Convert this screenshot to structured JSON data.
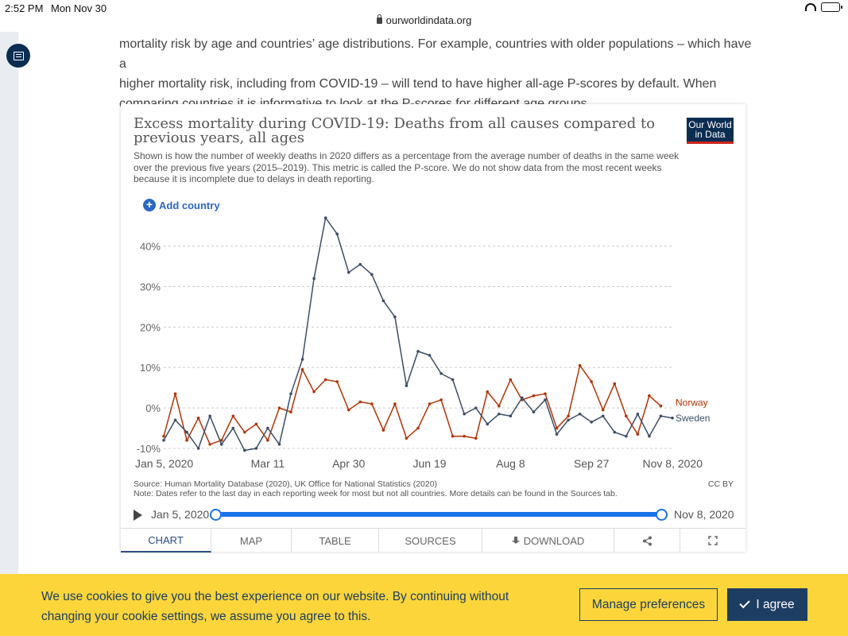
{
  "status": {
    "time": "2:52 PM",
    "date": "Mon Nov 30"
  },
  "browser": {
    "url": "ourworldindata.org"
  },
  "article": {
    "intro_lines": [
      "mortality risk by age and countries’ age distributions. For example, countries with older populations – which have a",
      "higher mortality risk, including from COVID-19 – will tend to have higher all-age P-scores by default. When",
      "comparing countries it is informative to look at the P-scores for different age groups."
    ]
  },
  "chart": {
    "title_lines": [
      "Excess mortality during COVID-19: Deaths from all causes compared to",
      "previous years, all ages"
    ],
    "logo_lines": [
      "Our World",
      "in Data"
    ],
    "subtitle_lines": [
      "Shown is how the number of weekly deaths in 2020 differs as a percentage from the average number of deaths in the same week",
      "over the previous five years (2015–2019). This metric is called the P-score. We do not show data from the most recent weeks",
      "because it is incomplete due to delays in death reporting."
    ],
    "add_country": "Add country",
    "source_line": "Source: Human Mortality Database (2020), UK Office for National Statistics (2020)",
    "note_line": "Note: Dates refer to the last day in each reporting week for most but not all countries. More details can be found in the Sources tab.",
    "license": "CC BY",
    "timeline": {
      "start": "Jan 5, 2020",
      "end": "Nov 8, 2020"
    },
    "tabs": [
      "CHART",
      "MAP",
      "TABLE",
      "SOURCES",
      "DOWNLOAD"
    ]
  },
  "chart_data": {
    "type": "line",
    "title": "Excess mortality during COVID-19: Deaths from all causes compared to previous years, all ages",
    "xlabel": "",
    "ylabel": "",
    "ylim": [
      -10,
      47
    ],
    "yticks": [
      -10,
      0,
      10,
      20,
      30,
      40
    ],
    "ytick_labels": [
      "-10%",
      "0%",
      "10%",
      "20%",
      "30%",
      "40%"
    ],
    "xtick_labels": [
      "Jan 5, 2020",
      "Mar 11",
      "Apr 30",
      "Jun 19",
      "Aug 8",
      "Sep 27",
      "Nov 8, 2020"
    ],
    "xtick_weeks": [
      1,
      10,
      17,
      24,
      31,
      38,
      45
    ],
    "x_weeks": [
      1,
      2,
      3,
      4,
      5,
      6,
      7,
      8,
      9,
      10,
      11,
      12,
      13,
      14,
      15,
      16,
      17,
      18,
      19,
      20,
      21,
      22,
      23,
      24,
      25,
      26,
      27,
      28,
      29,
      30,
      31,
      32,
      33,
      34,
      35,
      36,
      37,
      38,
      39,
      40,
      41,
      42,
      43,
      44,
      45
    ],
    "series": [
      {
        "name": "Norway",
        "color": "#b13507",
        "values": [
          -7,
          3.5,
          -8,
          -2.5,
          -9,
          -8,
          -2,
          -6,
          -4,
          -8,
          0,
          -1,
          9.5,
          4,
          7,
          6.5,
          -0.5,
          1.5,
          1,
          -5.5,
          1,
          -7.5,
          -5,
          1,
          2,
          -7,
          -7,
          -7.5,
          4,
          0.5,
          7,
          2,
          3,
          3.5,
          -5,
          -2,
          10.5,
          6.5,
          -0.5,
          6,
          -2,
          -6.5,
          3,
          0.5
        ]
      },
      {
        "name": "Sweden",
        "color": "#3c4e66",
        "values": [
          -8,
          -3,
          -6,
          -10,
          -2,
          -9,
          -5,
          -10.5,
          -10,
          -5,
          -9,
          3.5,
          12,
          32,
          47,
          43,
          33.5,
          35.5,
          33,
          26.5,
          22.5,
          5.5,
          14,
          13,
          8.5,
          7,
          -1.5,
          0,
          -4,
          -1.5,
          -2,
          2.5,
          -1,
          2,
          -6.5,
          -3,
          -1.5,
          -3.5,
          -2,
          -6,
          -7,
          -1.5,
          -7,
          -2,
          -2.5
        ]
      }
    ]
  },
  "cookie": {
    "lines": [
      "We use cookies to give you the best experience on our website. By continuing without",
      "changing your cookie settings, we assume you agree to this."
    ],
    "manage": "Manage preferences",
    "agree": "I agree"
  }
}
